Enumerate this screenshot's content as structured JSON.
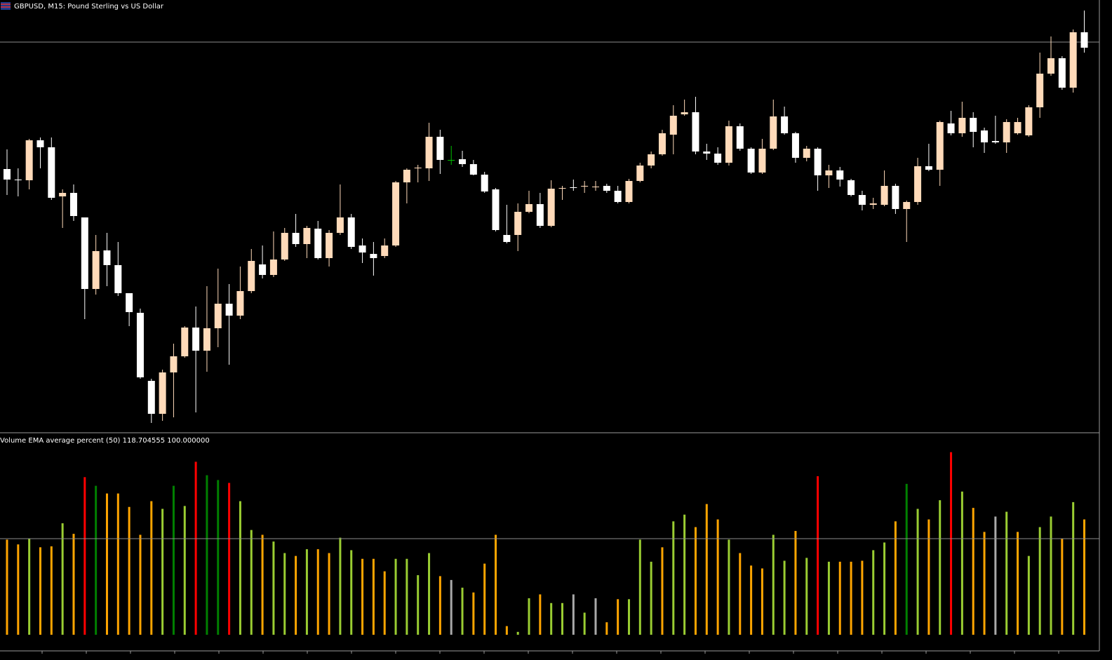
{
  "chart_data": [
    {
      "type": "candlestick",
      "title": "GBPUSD, M15:  Pound Sterling vs US Dollar",
      "ylim": [
        5,
        620
      ],
      "up_color": "#ffdab9",
      "down_color": "#ffffff",
      "doji_color": "#00c000",
      "hline": 560,
      "hline_color": "#8c8c8c",
      "open": [
        379,
        364,
        363,
        420,
        410,
        340,
        345,
        310,
        208,
        263,
        242,
        202,
        174,
        77,
        30,
        89,
        112,
        153,
        120,
        152,
        187,
        170,
        205,
        243,
        228,
        250,
        288,
        272,
        294,
        252,
        288,
        310,
        270,
        258,
        255,
        270,
        360,
        380,
        380,
        425,
        392,
        393,
        386,
        371,
        350,
        285,
        285,
        318,
        329,
        298,
        351,
        353,
        354,
        353,
        355,
        348,
        332,
        362,
        384,
        400,
        428,
        457,
        460,
        404,
        401,
        388,
        440,
        408,
        374,
        408,
        454,
        430,
        395,
        408,
        370,
        377,
        363,
        342,
        328,
        328,
        355,
        322,
        332,
        383,
        378,
        444,
        430,
        452,
        434,
        419,
        417,
        430,
        427,
        467,
        515,
        537,
        495,
        574
      ],
      "high": [
        407,
        380,
        422,
        424,
        424,
        350,
        357,
        310,
        285,
        288,
        275,
        202,
        180,
        80,
        93,
        130,
        155,
        183,
        212,
        237,
        215,
        240,
        265,
        270,
        290,
        295,
        315,
        298,
        305,
        292,
        357,
        315,
        280,
        275,
        280,
        362,
        380,
        385,
        445,
        435,
        412,
        405,
        392,
        375,
        352,
        328,
        330,
        348,
        345,
        363,
        355,
        364,
        362,
        362,
        358,
        355,
        365,
        388,
        404,
        435,
        470,
        478,
        482,
        415,
        410,
        448,
        444,
        410,
        422,
        478,
        468,
        432,
        412,
        410,
        385,
        382,
        365,
        348,
        338,
        377,
        358,
        334,
        395,
        415,
        448,
        462,
        475,
        460,
        438,
        455,
        450,
        452,
        470,
        545,
        568,
        540,
        578,
        605
      ],
      "low": [
        342,
        340,
        350,
        380,
        335,
        295,
        305,
        165,
        200,
        212,
        198,
        155,
        80,
        17,
        20,
        25,
        110,
        32,
        90,
        125,
        100,
        165,
        202,
        223,
        225,
        248,
        268,
        252,
        250,
        240,
        285,
        265,
        245,
        227,
        252,
        268,
        330,
        360,
        362,
        372,
        385,
        382,
        370,
        345,
        290,
        273,
        262,
        316,
        295,
        296,
        335,
        348,
        345,
        348,
        345,
        330,
        330,
        360,
        380,
        398,
        400,
        455,
        400,
        392,
        385,
        384,
        405,
        372,
        372,
        406,
        428,
        388,
        390,
        348,
        352,
        354,
        340,
        320,
        322,
        326,
        315,
        275,
        328,
        376,
        355,
        427,
        425,
        410,
        402,
        415,
        402,
        428,
        425,
        452,
        512,
        492,
        488,
        545
      ],
      "close": [
        364,
        363,
        420,
        410,
        338,
        345,
        312,
        208,
        262,
        242,
        202,
        175,
        82,
        30,
        89,
        112,
        153,
        120,
        152,
        187,
        170,
        205,
        248,
        228,
        250,
        288,
        272,
        295,
        252,
        288,
        310,
        268,
        260,
        252,
        270,
        360,
        378,
        381,
        425,
        392,
        392,
        386,
        371,
        347,
        292,
        275,
        318,
        329,
        298,
        351,
        352,
        352,
        355,
        354,
        348,
        332,
        362,
        384,
        400,
        430,
        455,
        460,
        404,
        401,
        388,
        440,
        408,
        374,
        408,
        454,
        430,
        395,
        408,
        370,
        377,
        364,
        342,
        328,
        330,
        355,
        322,
        332,
        383,
        378,
        446,
        430,
        452,
        432,
        417,
        417,
        446,
        446,
        467,
        515,
        537,
        495,
        574,
        552
      ]
    },
    {
      "type": "bar",
      "title": "Volume EMA average percent (50) 118.704555 100.000000",
      "ylim": [
        0,
        208
      ],
      "level": 100,
      "level_color": "#8c8c8c",
      "values": [
        99,
        94,
        100,
        91,
        92,
        116,
        105,
        164,
        155,
        147,
        147,
        133,
        104,
        139,
        131,
        155,
        134,
        180,
        166,
        161,
        158,
        139,
        109,
        104,
        97,
        85,
        82,
        89,
        89,
        85,
        101,
        88,
        79,
        79,
        66,
        79,
        79,
        62,
        85,
        61,
        57,
        49,
        44,
        74,
        104,
        9,
        3,
        38,
        42,
        33,
        33,
        42,
        23,
        38,
        13,
        37,
        37,
        99,
        76,
        91,
        118,
        125,
        112,
        136,
        120,
        99,
        85,
        72,
        69,
        104,
        77,
        108,
        80,
        165,
        76,
        76,
        76,
        77,
        88,
        96,
        118,
        157,
        131,
        120,
        140,
        190,
        149,
        132,
        107,
        123,
        128,
        107,
        82,
        112,
        123,
        100,
        138,
        120
      ],
      "colors": [
        "#ffa500",
        "#ffa500",
        "#9acd32",
        "#ffa500",
        "#ffa500",
        "#9acd32",
        "#ffa500",
        "#ff0000",
        "#008000",
        "#ffa500",
        "#ffa500",
        "#ffa500",
        "#ffa500",
        "#ffa500",
        "#9acd32",
        "#008000",
        "#9acd32",
        "#ff0000",
        "#008000",
        "#008000",
        "#ff0000",
        "#9acd32",
        "#9acd32",
        "#ffa500",
        "#9acd32",
        "#9acd32",
        "#ffa500",
        "#9acd32",
        "#ffa500",
        "#ffa500",
        "#9acd32",
        "#9acd32",
        "#ffa500",
        "#ffa500",
        "#ffa500",
        "#9acd32",
        "#9acd32",
        "#9acd32",
        "#9acd32",
        "#ffa500",
        "#a9a9a9",
        "#9acd32",
        "#ffa500",
        "#ffa500",
        "#ffa500",
        "#ffa500",
        "#9acd32",
        "#9acd32",
        "#ffa500",
        "#9acd32",
        "#9acd32",
        "#a9a9a9",
        "#9acd32",
        "#a9a9a9",
        "#ffa500",
        "#ffa500",
        "#9acd32",
        "#9acd32",
        "#9acd32",
        "#ffa500",
        "#9acd32",
        "#9acd32",
        "#ffa500",
        "#ffa500",
        "#ffa500",
        "#9acd32",
        "#ffa500",
        "#ffa500",
        "#ffa500",
        "#9acd32",
        "#9acd32",
        "#ffa500",
        "#9acd32",
        "#ff0000",
        "#9acd32",
        "#ffa500",
        "#ffa500",
        "#ffa500",
        "#9acd32",
        "#9acd32",
        "#ffa500",
        "#008000",
        "#9acd32",
        "#ffa500",
        "#9acd32",
        "#ff0000",
        "#9acd32",
        "#ffa500",
        "#ffa500",
        "#a9a9a9",
        "#9acd32",
        "#ffa500",
        "#9acd32",
        "#9acd32",
        "#9acd32",
        "#ffa500",
        "#9acd32",
        "#ffa500"
      ]
    }
  ]
}
